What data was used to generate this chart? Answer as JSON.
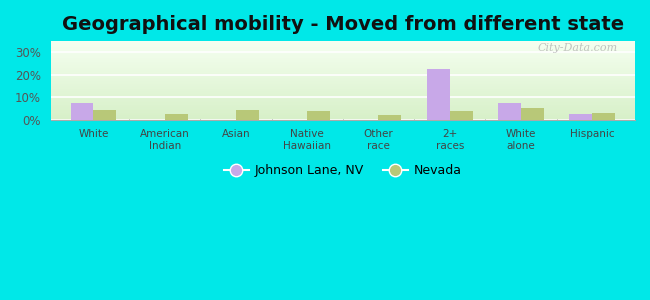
{
  "title": "Geographical mobility - Moved from different state",
  "categories": [
    "White",
    "American\nIndian",
    "Asian",
    "Native\nHawaiian",
    "Other\nrace",
    "2+\nraces",
    "White\nalone",
    "Hispanic"
  ],
  "johnson_lane": [
    7.5,
    0,
    0,
    0,
    0,
    22.5,
    7.5,
    2.5
  ],
  "nevada": [
    4.5,
    2.5,
    4.5,
    4.0,
    2.0,
    4.0,
    5.0,
    3.0
  ],
  "johnson_lane_color": "#c8a8e8",
  "nevada_color": "#b8c878",
  "background_color": "#00e8e8",
  "ylim": [
    0,
    35
  ],
  "yticks": [
    0,
    10,
    20,
    30
  ],
  "ytick_labels": [
    "0%",
    "10%",
    "20%",
    "30%"
  ],
  "legend_label_1": "Johnson Lane, NV",
  "legend_label_2": "Nevada",
  "title_fontsize": 14,
  "watermark": "City-Data.com"
}
